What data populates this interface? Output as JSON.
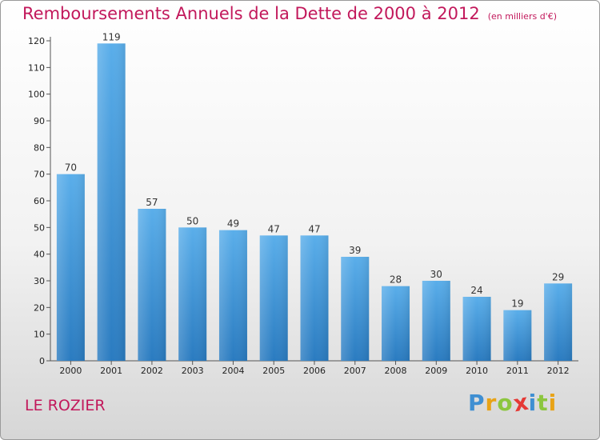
{
  "title": "Remboursements Annuels de la Dette de 2000 à 2012",
  "subtitle": "(en milliers d'€)",
  "commune": "LE ROZIER",
  "logo": {
    "text": "Proxiti",
    "letter_colors": [
      "#3f8fd2",
      "#e8a317",
      "#8cc63f",
      "#e53935",
      "#3f8fd2",
      "#8cc63f",
      "#e8a317"
    ]
  },
  "chart_data": {
    "type": "bar",
    "title": "Remboursements Annuels de la Dette de 2000 à 2012",
    "subtitle": "(en milliers d'€)",
    "categories": [
      "2000",
      "2001",
      "2002",
      "2003",
      "2004",
      "2005",
      "2006",
      "2007",
      "2008",
      "2009",
      "2010",
      "2011",
      "2012"
    ],
    "values": [
      70,
      119,
      57,
      50,
      49,
      47,
      47,
      39,
      28,
      30,
      24,
      19,
      29
    ],
    "ylim": [
      0,
      120
    ],
    "yticks": [
      0,
      10,
      20,
      30,
      40,
      50,
      60,
      70,
      80,
      90,
      100,
      110,
      120
    ],
    "bar_color": "#4a9fe0",
    "grid": false,
    "legend": "none"
  }
}
